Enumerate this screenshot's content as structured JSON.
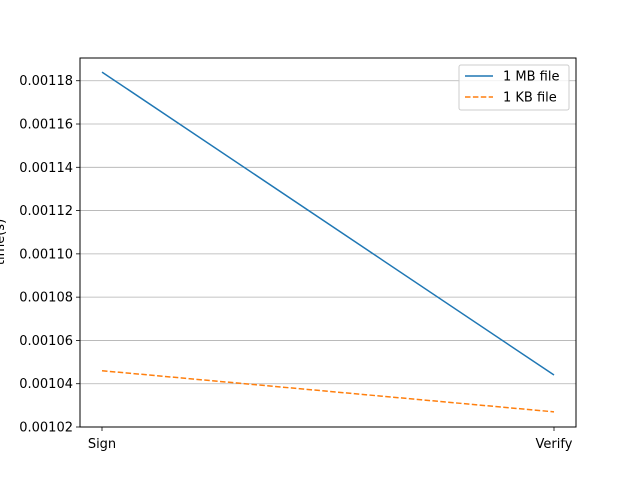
{
  "chart_data": {
    "type": "line",
    "categories": [
      "Sign",
      "Verify"
    ],
    "series": [
      {
        "name": "1 MB file",
        "values": [
          0.001184,
          0.001044
        ],
        "color": "#1f77b4",
        "dash": "solid"
      },
      {
        "name": "1 KB file",
        "values": [
          0.001046,
          0.001027
        ],
        "color": "#ff7f0e",
        "dash": "dashed"
      }
    ],
    "ylabel": "time(s)",
    "xlabel": "",
    "ylim": [
      0.00102,
      0.0011905
    ],
    "yticks": [
      "0.00102",
      "0.00104",
      "0.00106",
      "0.00108",
      "0.00110",
      "0.00112",
      "0.00114",
      "0.00116",
      "0.00118"
    ],
    "grid": "horizontal",
    "legend_position": "upper-right"
  }
}
